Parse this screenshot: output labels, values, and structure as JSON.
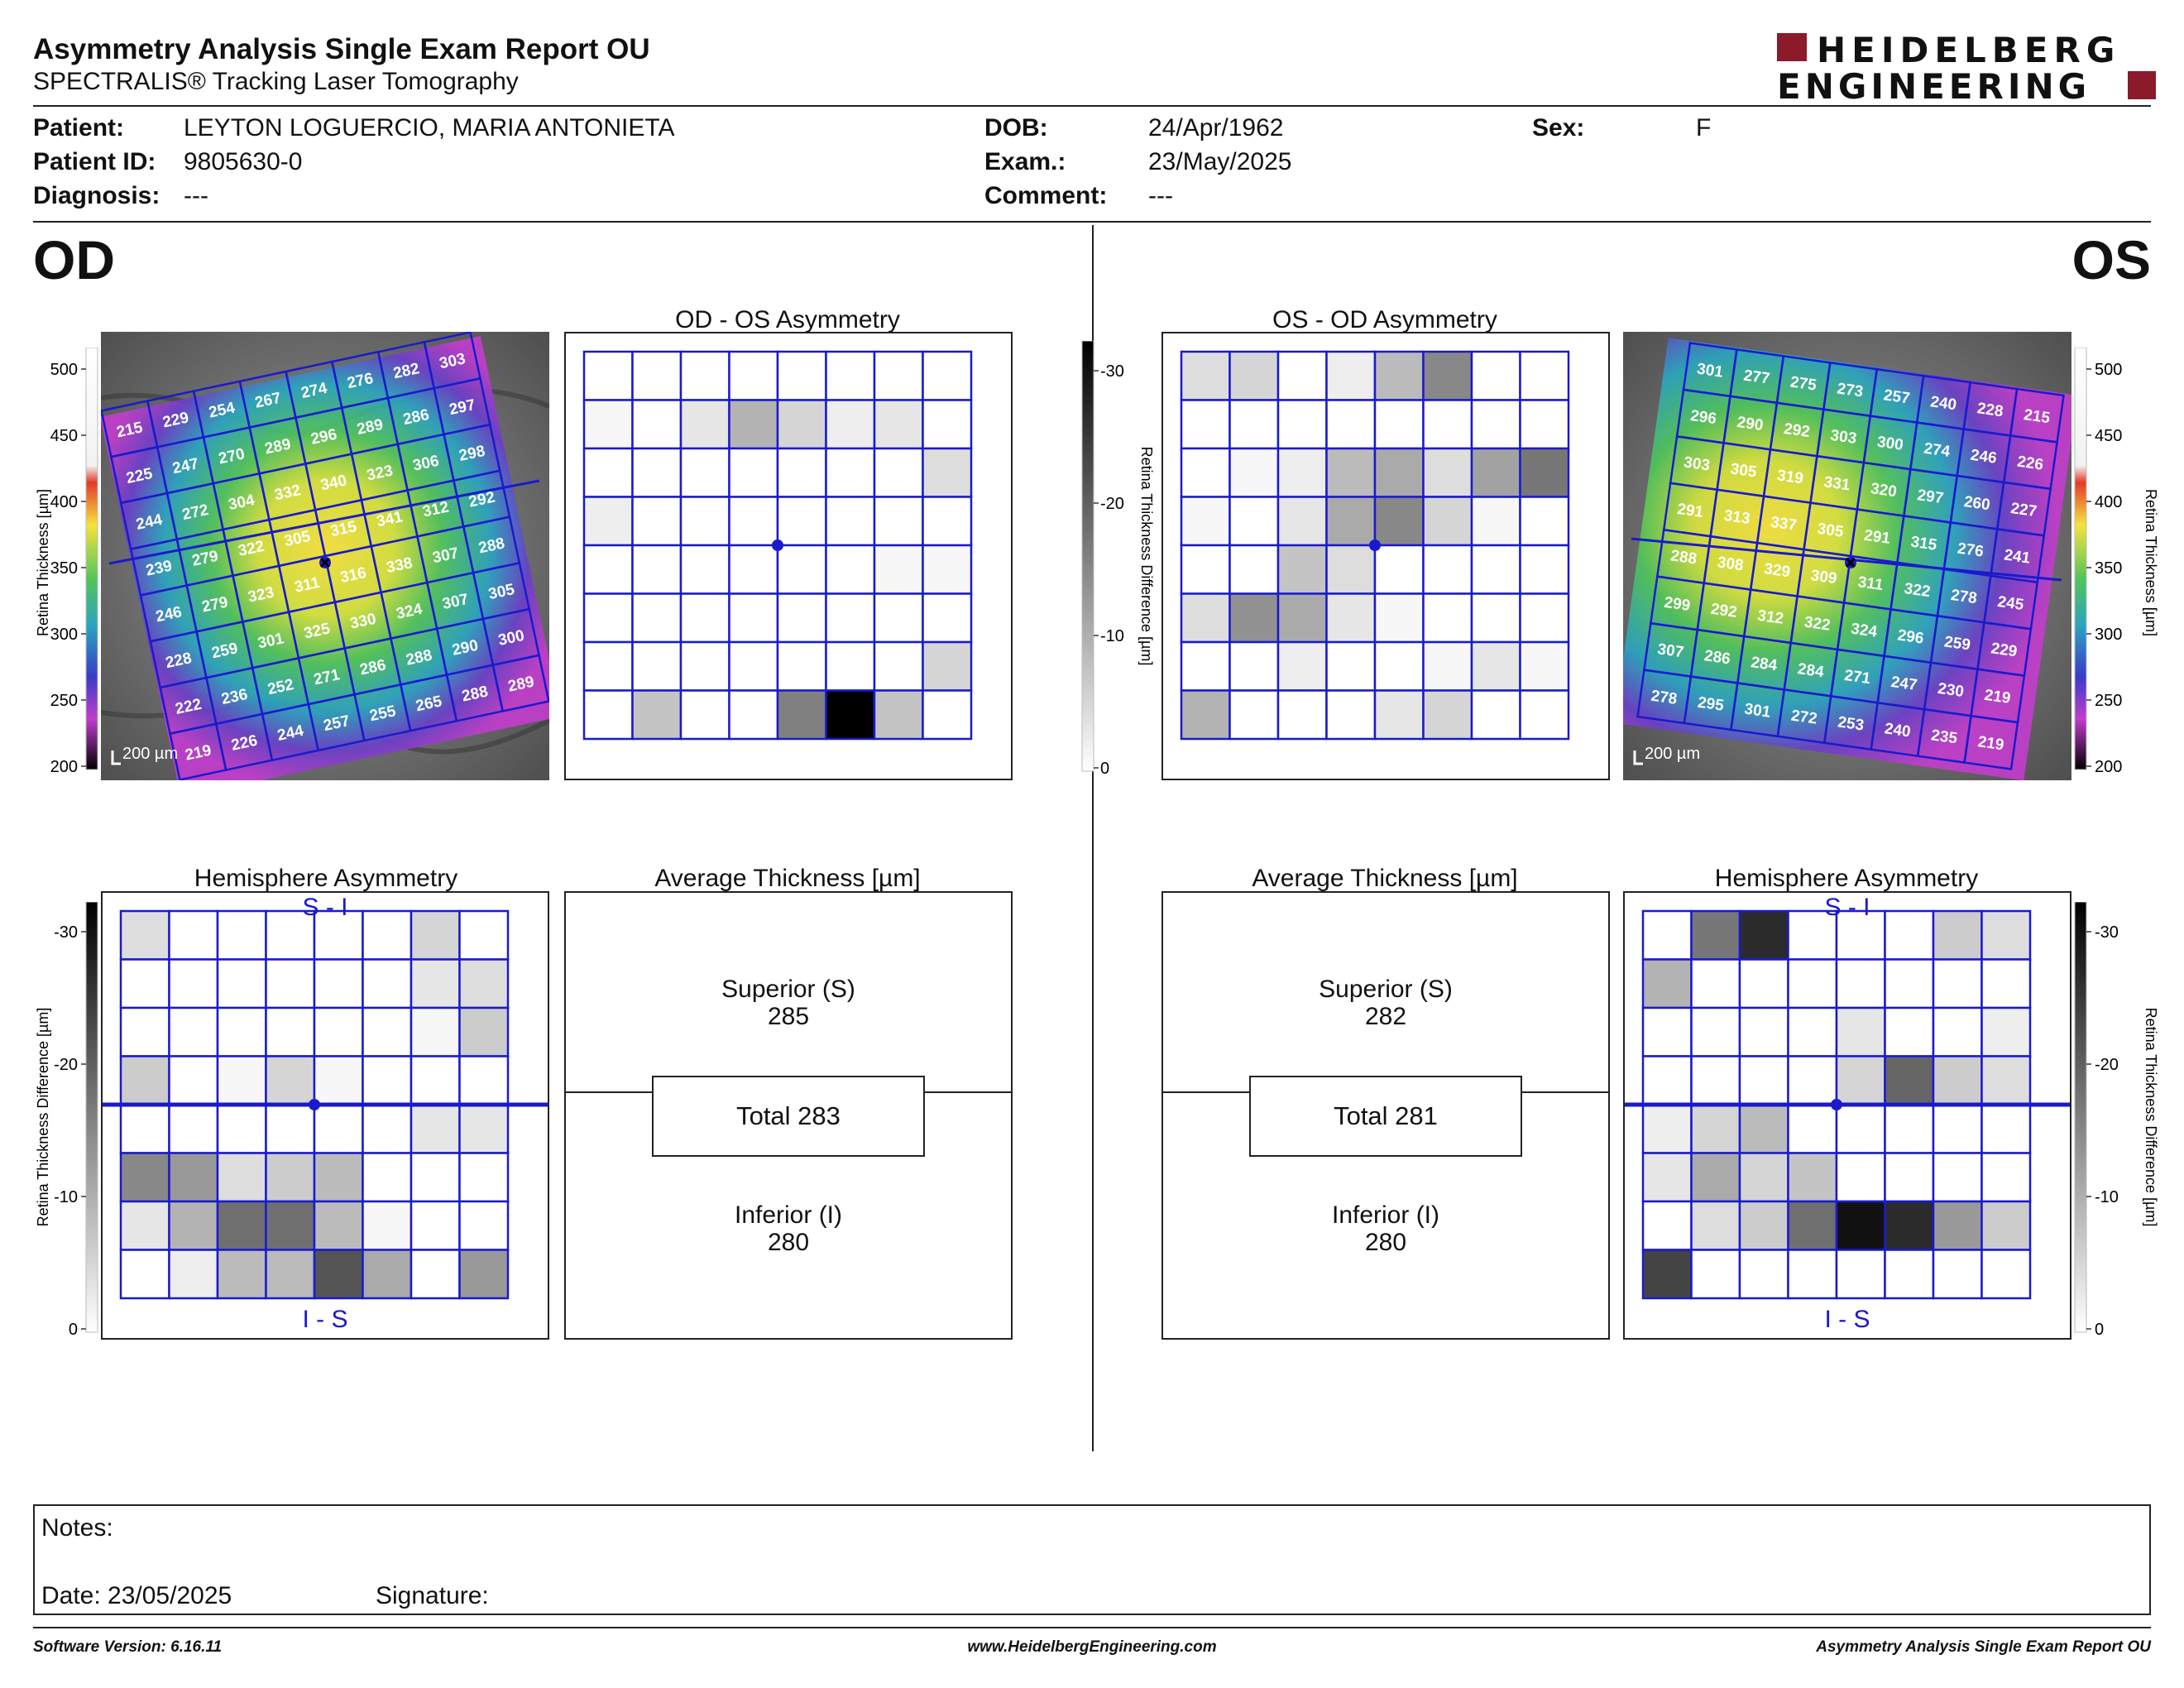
{
  "report": {
    "title": "Asymmetry Analysis Single Exam Report OU",
    "subtitle": "SPECTRALIS® Tracking Laser Tomography",
    "logo_line1": "HEIDELBERG",
    "logo_line2": "ENGINEERING"
  },
  "patient": {
    "patient_label": "Patient:",
    "patient_value": "LEYTON LOGUERCIO, MARIA ANTONIETA",
    "id_label": "Patient ID:",
    "id_value": "9805630-0",
    "diagnosis_label": "Diagnosis:",
    "diagnosis_value": "---",
    "dob_label": "DOB:",
    "dob_value": "24/Apr/1962",
    "exam_label": "Exam.:",
    "exam_value": "23/May/2025",
    "comment_label": "Comment:",
    "comment_value": "---",
    "sex_label": "Sex:",
    "sex_value": "F"
  },
  "od": {
    "eye_label": "OD",
    "asym_title": "OD - OS Asymmetry",
    "hemi_title": "Hemisphere Asymmetry",
    "avg_title": "Average Thickness [µm]",
    "superior_label": "Superior (S)",
    "superior_value": "285",
    "total_text": "Total 283",
    "inferior_label": "Inferior (I)",
    "inferior_value": "280",
    "hemi_top": "S - I",
    "hemi_bottom": "I - S",
    "scale_bar": "200 µm",
    "thickness_grid": [
      [
        "215",
        "229",
        "254",
        "267",
        "274",
        "276",
        "282",
        "303"
      ],
      [
        "225",
        "247",
        "270",
        "289",
        "296",
        "289",
        "286",
        "297"
      ],
      [
        "244",
        "272",
        "304",
        "332",
        "340",
        "323",
        "306",
        "298"
      ],
      [
        "239",
        "279",
        "322",
        "305",
        "315",
        "341",
        "312",
        "292"
      ],
      [
        "246",
        "279",
        "323",
        "311",
        "316",
        "338",
        "307",
        "288"
      ],
      [
        "228",
        "259",
        "301",
        "325",
        "330",
        "324",
        "307",
        "305"
      ],
      [
        "222",
        "236",
        "252",
        "271",
        "286",
        "288",
        "290",
        "300"
      ],
      [
        "219",
        "226",
        "244",
        "257",
        "255",
        "265",
        "288",
        "289"
      ]
    ],
    "asym_diff": [
      [
        0,
        0,
        0,
        0,
        0,
        0,
        0,
        0
      ],
      [
        1,
        0,
        3,
        9,
        5,
        2,
        3,
        0
      ],
      [
        0,
        0,
        0,
        0,
        0,
        0,
        0,
        4
      ],
      [
        2,
        0,
        0,
        0,
        0,
        0,
        0,
        0
      ],
      [
        0,
        0,
        0,
        0,
        0,
        0,
        1,
        1
      ],
      [
        0,
        0,
        0,
        0,
        0,
        0,
        0,
        0
      ],
      [
        0,
        0,
        0,
        0,
        0,
        0,
        0,
        5
      ],
      [
        0,
        7,
        0,
        0,
        15,
        30,
        7,
        0
      ]
    ],
    "hemi_diff": [
      [
        4,
        0,
        0,
        0,
        0,
        0,
        5,
        0
      ],
      [
        0,
        0,
        0,
        0,
        0,
        0,
        3,
        4
      ],
      [
        0,
        0,
        0,
        0,
        0,
        0,
        1,
        6
      ],
      [
        6,
        0,
        1,
        5,
        1,
        0,
        0,
        0
      ],
      [
        0,
        0,
        0,
        0,
        0,
        0,
        3,
        3
      ],
      [
        14,
        12,
        4,
        6,
        8,
        0,
        0,
        0
      ],
      [
        3,
        9,
        17,
        17,
        8,
        1,
        0,
        0
      ],
      [
        0,
        2,
        8,
        8,
        20,
        10,
        0,
        12
      ]
    ]
  },
  "os": {
    "eye_label": "OS",
    "asym_title": "OS - OD Asymmetry",
    "hemi_title": "Hemisphere Asymmetry",
    "avg_title": "Average Thickness [µm]",
    "superior_label": "Superior (S)",
    "superior_value": "282",
    "total_text": "Total 281",
    "inferior_label": "Inferior (I)",
    "inferior_value": "280",
    "hemi_top": "S - I",
    "hemi_bottom": "I - S",
    "scale_bar": "200 µm",
    "thickness_grid": [
      [
        "301",
        "277",
        "275",
        "273",
        "257",
        "240",
        "228",
        "215"
      ],
      [
        "296",
        "290",
        "292",
        "303",
        "300",
        "274",
        "246",
        "226"
      ],
      [
        "303",
        "305",
        "319",
        "331",
        "320",
        "297",
        "260",
        "227"
      ],
      [
        "291",
        "313",
        "337",
        "305",
        "291",
        "315",
        "276",
        "241"
      ],
      [
        "288",
        "308",
        "329",
        "309",
        "311",
        "322",
        "278",
        "245"
      ],
      [
        "299",
        "292",
        "312",
        "322",
        "324",
        "296",
        "259",
        "229"
      ],
      [
        "307",
        "286",
        "284",
        "284",
        "271",
        "247",
        "230",
        "219"
      ],
      [
        "278",
        "295",
        "301",
        "272",
        "253",
        "240",
        "235",
        "219"
      ]
    ],
    "asym_diff": [
      [
        4,
        5,
        0,
        2,
        8,
        14,
        0,
        0
      ],
      [
        0,
        0,
        0,
        0,
        0,
        0,
        0,
        0
      ],
      [
        0,
        1,
        2,
        8,
        10,
        4,
        11,
        16
      ],
      [
        1,
        0,
        3,
        10,
        14,
        5,
        1,
        0
      ],
      [
        0,
        0,
        7,
        4,
        0,
        0,
        0,
        0
      ],
      [
        4,
        13,
        10,
        3,
        1,
        0,
        0,
        0
      ],
      [
        0,
        0,
        2,
        0,
        0,
        1,
        3,
        1
      ],
      [
        9,
        0,
        0,
        0,
        3,
        5,
        0,
        0
      ]
    ],
    "hemi_diff": [
      [
        0,
        16,
        25,
        0,
        0,
        0,
        6,
        4
      ],
      [
        9,
        0,
        0,
        0,
        0,
        0,
        0,
        0
      ],
      [
        0,
        0,
        0,
        0,
        3,
        0,
        0,
        2
      ],
      [
        0,
        0,
        0,
        0,
        5,
        18,
        6,
        4
      ],
      [
        2,
        5,
        8,
        0,
        0,
        0,
        0,
        0
      ],
      [
        3,
        10,
        5,
        7,
        0,
        0,
        0,
        0
      ],
      [
        0,
        4,
        6,
        17,
        28,
        25,
        12,
        6
      ],
      [
        22,
        0,
        0,
        0,
        0,
        0,
        0,
        0
      ]
    ]
  },
  "scales": {
    "thickness_ticks": [
      "500",
      "450",
      "400",
      "350",
      "300",
      "250",
      "200"
    ],
    "thickness_axis_label": "Retina Thickness [µm]",
    "diff_ticks": [
      "-30",
      "-20",
      "-10",
      "0"
    ],
    "diff_axis_label": "Retina Thickness Difference [µm]"
  },
  "notes": {
    "notes_label": "Notes:",
    "date_text": "Date: 23/05/2025",
    "signature_label": "Signature:"
  },
  "footer": {
    "software": "Software Version: 6.16.11",
    "website": "www.HeidelbergEngineering.com",
    "report_name": "Asymmetry Analysis Single Exam Report OU"
  },
  "colors": {
    "grid_blue": "#1a1acc",
    "logo_red": "#8b1a2b"
  }
}
